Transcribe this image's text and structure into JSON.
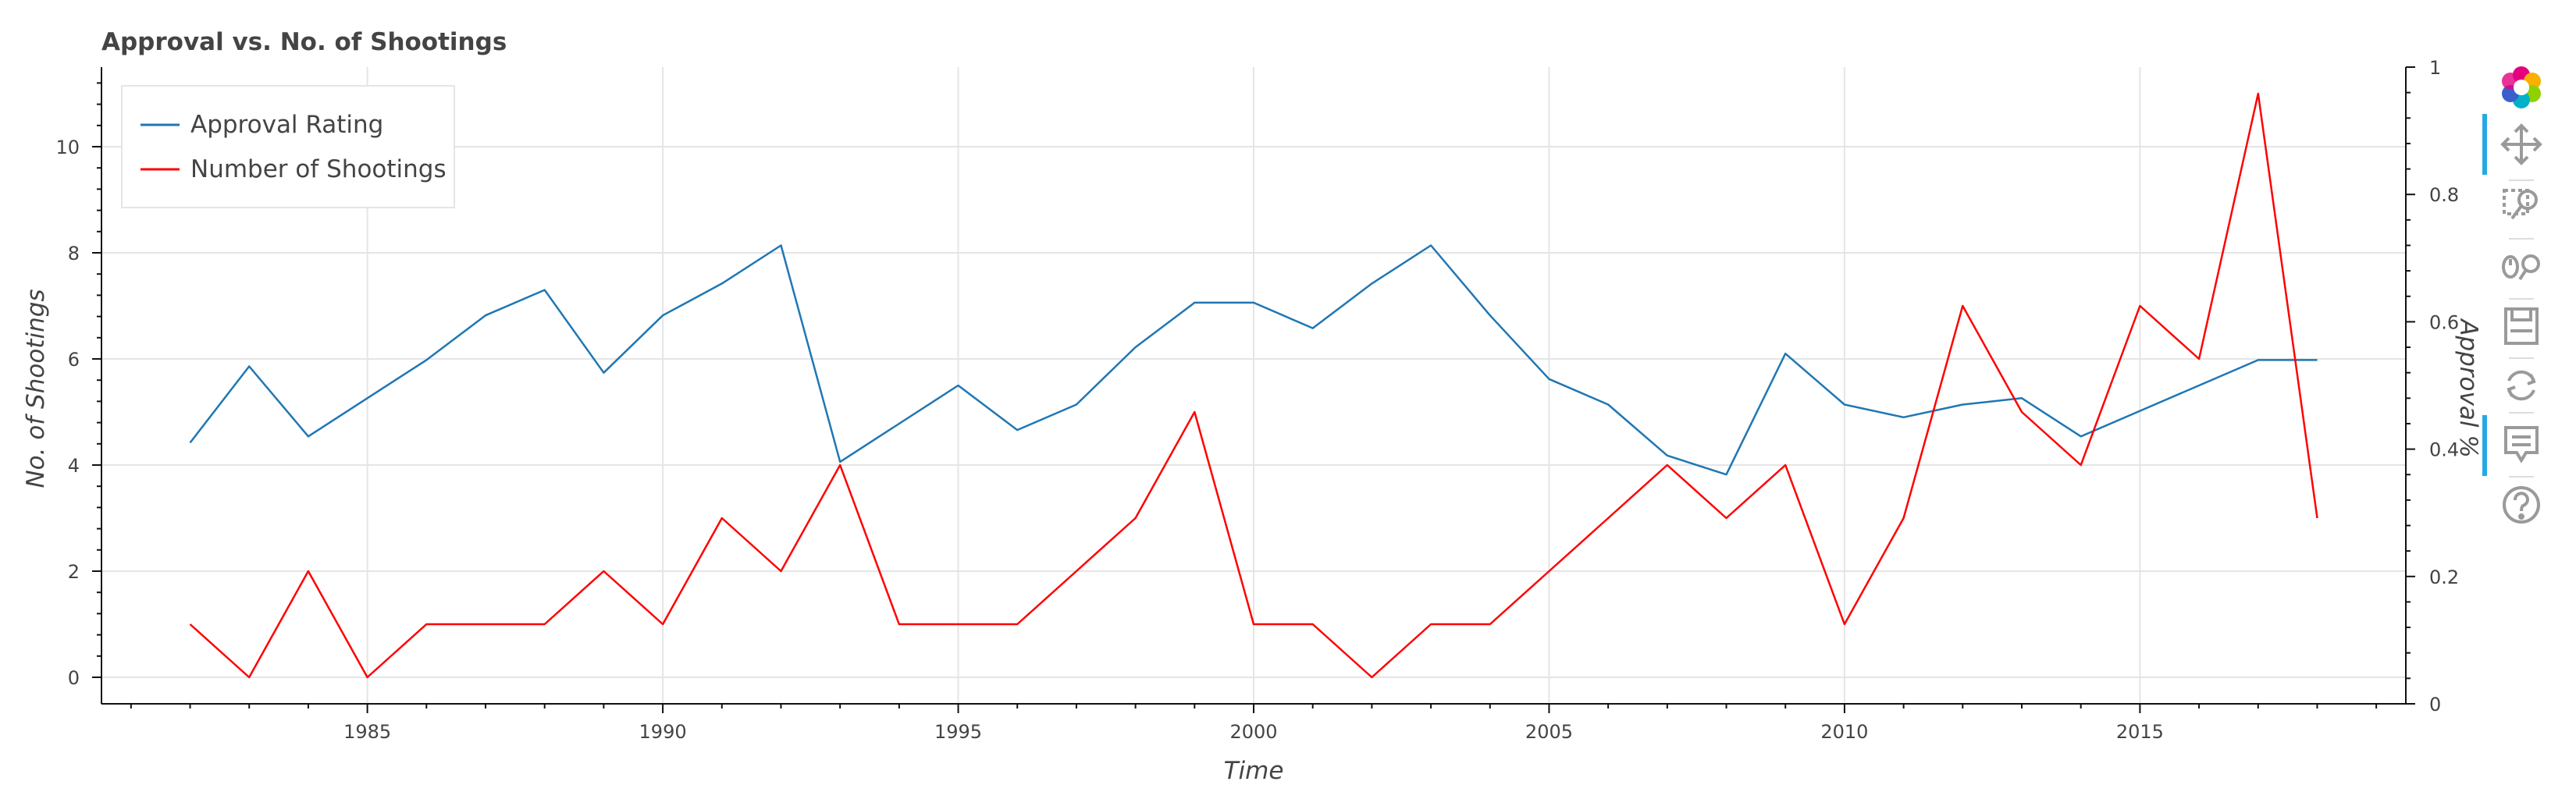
{
  "chart_data": {
    "type": "line",
    "title": "Approval vs. No. of Shootings",
    "xlabel": "Time",
    "ylabel": "No. of Shootings",
    "y2label": "Approval %",
    "xlim": [
      1980.5,
      2019.5
    ],
    "ylim": [
      -0.5,
      11.5
    ],
    "y2lim": [
      0,
      1
    ],
    "xticks": [
      1985,
      1990,
      1995,
      2000,
      2005,
      2010,
      2015
    ],
    "yticks": [
      0,
      2,
      4,
      6,
      8,
      10
    ],
    "y2ticks": [
      0,
      0.2,
      0.4,
      0.6,
      0.8,
      1
    ],
    "y2ticklabels": [
      "0",
      "0.2",
      "0.4",
      "0.6",
      "0.8",
      "1"
    ],
    "grid": true,
    "legend_position": "top-left",
    "x": [
      1982,
      1983,
      1984,
      1985,
      1986,
      1987,
      1988,
      1989,
      1990,
      1991,
      1992,
      1993,
      1994,
      1995,
      1996,
      1997,
      1998,
      1999,
      2000,
      2001,
      2002,
      2003,
      2004,
      2005,
      2006,
      2007,
      2008,
      2009,
      2010,
      2011,
      2012,
      2013,
      2014,
      2015,
      2016,
      2017,
      2018
    ],
    "series": [
      {
        "name": "Approval Rating",
        "axis": "right",
        "color": "#1f77b4",
        "values": [
          0.41,
          0.53,
          0.42,
          0.48,
          0.54,
          0.61,
          0.65,
          0.52,
          0.61,
          0.66,
          0.72,
          0.38,
          0.44,
          0.5,
          0.43,
          0.47,
          0.56,
          0.63,
          0.63,
          0.59,
          0.66,
          0.72,
          0.61,
          0.51,
          0.47,
          0.39,
          0.36,
          0.55,
          0.47,
          0.45,
          0.47,
          0.48,
          0.42,
          0.46,
          0.5,
          0.54,
          0.54
        ]
      },
      {
        "name": "Number of Shootings",
        "axis": "left",
        "color": "#ff0000",
        "values": [
          1,
          0,
          2,
          0,
          1,
          1,
          1,
          2,
          1,
          3,
          2,
          4,
          1,
          1,
          1,
          2,
          3,
          5,
          1,
          1,
          0,
          1,
          1,
          2,
          3,
          4,
          3,
          4,
          1,
          3,
          7,
          5,
          4,
          7,
          6,
          11,
          3
        ]
      }
    ]
  },
  "toolbar": {
    "tools": [
      {
        "name": "bokeh-logo-icon",
        "active": false
      },
      {
        "name": "pan-tool-icon",
        "active": true
      },
      {
        "name": "box-zoom-tool-icon",
        "active": false
      },
      {
        "name": "wheel-zoom-tool-icon",
        "active": false
      },
      {
        "name": "save-tool-icon",
        "active": false
      },
      {
        "name": "reset-tool-icon",
        "active": false
      },
      {
        "name": "hover-tool-icon",
        "active": true
      },
      {
        "name": "help-tool-icon",
        "active": false
      }
    ]
  }
}
